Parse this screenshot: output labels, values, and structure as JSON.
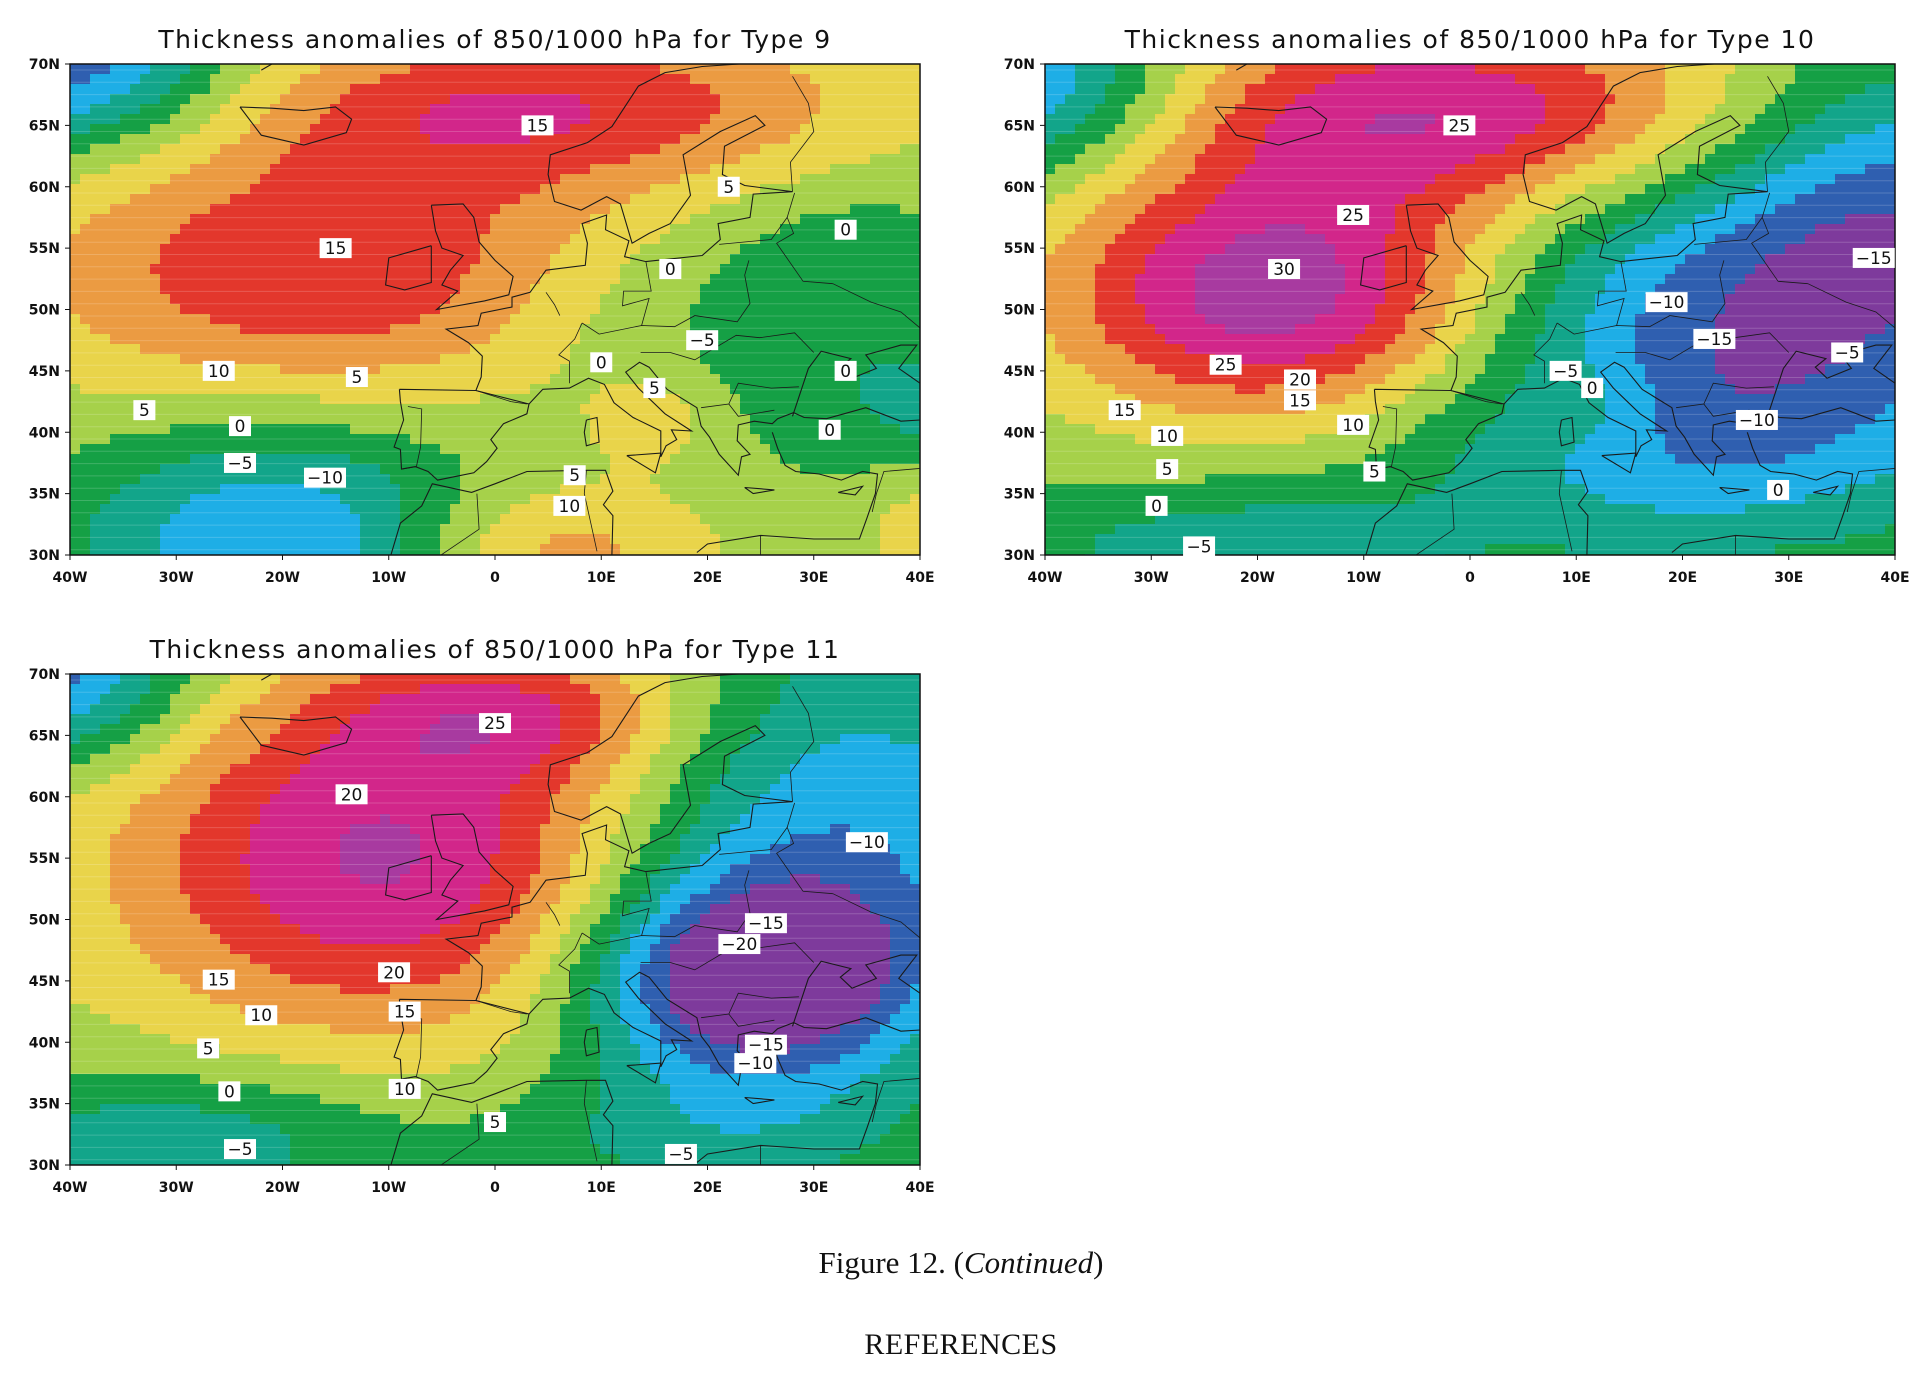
{
  "figure": {
    "caption_label": "Figure 12.",
    "caption_open": "(",
    "caption_italic": "Continued",
    "caption_close": ")",
    "section_heading": "REFERENCES"
  },
  "map_extent": {
    "lon": [
      -40,
      40
    ],
    "lat": [
      30,
      70
    ]
  },
  "axes": {
    "lat_ticks": [
      "70N",
      "65N",
      "60N",
      "55N",
      "50N",
      "45N",
      "40N",
      "35N",
      "30N"
    ],
    "lon_ticks": [
      "40W",
      "30W",
      "20W",
      "10W",
      "0",
      "10E",
      "20E",
      "30E",
      "40E"
    ]
  },
  "palette": {
    "-25": "#7e3a9c",
    "-20": "#2f5fb0",
    "-15": "#1eaee6",
    "-10": "#12a58a",
    "-5": "#15a045",
    "0": "#a6d14a",
    "5": "#e9d44a",
    "10": "#eb9b42",
    "15": "#e3372c",
    "20": "#d2268a",
    "25": "#a83aa0"
  },
  "panels": [
    {
      "id": "type9",
      "title": "Thickness anomalies of 850/1000 hPa for Type 9",
      "contour_labels": [
        {
          "text": "15",
          "lon": 4,
          "lat": 65
        },
        {
          "text": "15",
          "lon": -15,
          "lat": 55
        },
        {
          "text": "10",
          "lon": -26,
          "lat": 45
        },
        {
          "text": "5",
          "lon": -13,
          "lat": 44.5
        },
        {
          "text": "5",
          "lon": -33,
          "lat": 41.8
        },
        {
          "text": "0",
          "lon": -24,
          "lat": 40.5
        },
        {
          "text": "−5",
          "lon": -24,
          "lat": 37.5
        },
        {
          "text": "−10",
          "lon": -16,
          "lat": 36.3
        },
        {
          "text": "5",
          "lon": 22,
          "lat": 60
        },
        {
          "text": "0",
          "lon": 33,
          "lat": 56.5
        },
        {
          "text": "0",
          "lon": 16.5,
          "lat": 53.3
        },
        {
          "text": "−5",
          "lon": 19.5,
          "lat": 47.5
        },
        {
          "text": "0",
          "lon": 10,
          "lat": 45.7
        },
        {
          "text": "5",
          "lon": 15,
          "lat": 43.6
        },
        {
          "text": "0",
          "lon": 33,
          "lat": 45
        },
        {
          "text": "0",
          "lon": 31.5,
          "lat": 40.2
        },
        {
          "text": "5",
          "lon": 7.5,
          "lat": 36.5
        },
        {
          "text": "10",
          "lon": 7,
          "lat": 34
        }
      ]
    },
    {
      "id": "type10",
      "title": "Thickness anomalies of 850/1000 hPa for Type 10",
      "contour_labels": [
        {
          "text": "25",
          "lon": -1,
          "lat": 65
        },
        {
          "text": "25",
          "lon": -11,
          "lat": 57.7
        },
        {
          "text": "30",
          "lon": -17.5,
          "lat": 53.3
        },
        {
          "text": "25",
          "lon": -23,
          "lat": 45.5
        },
        {
          "text": "20",
          "lon": -16,
          "lat": 44.3
        },
        {
          "text": "15",
          "lon": -16,
          "lat": 42.6
        },
        {
          "text": "15",
          "lon": -32.5,
          "lat": 41.8
        },
        {
          "text": "10",
          "lon": -11,
          "lat": 40.6
        },
        {
          "text": "10",
          "lon": -28.5,
          "lat": 39.7
        },
        {
          "text": "5",
          "lon": -28.5,
          "lat": 37
        },
        {
          "text": "5",
          "lon": -9,
          "lat": 36.8
        },
        {
          "text": "0",
          "lon": -29.5,
          "lat": 34
        },
        {
          "text": "−5",
          "lon": -25.5,
          "lat": 30.7
        },
        {
          "text": "−15",
          "lon": 38,
          "lat": 54.2
        },
        {
          "text": "−10",
          "lon": 18.5,
          "lat": 50.6
        },
        {
          "text": "−15",
          "lon": 23,
          "lat": 47.6
        },
        {
          "text": "−5",
          "lon": 35.5,
          "lat": 46.5
        },
        {
          "text": "−5",
          "lon": 9,
          "lat": 45
        },
        {
          "text": "0",
          "lon": 11.5,
          "lat": 43.6
        },
        {
          "text": "−10",
          "lon": 27,
          "lat": 41
        },
        {
          "text": "0",
          "lon": 29,
          "lat": 35.3
        }
      ]
    },
    {
      "id": "type11",
      "title": "Thickness anomalies of 850/1000 hPa for Type 11",
      "contour_labels": [
        {
          "text": "25",
          "lon": 0,
          "lat": 66
        },
        {
          "text": "20",
          "lon": -13.5,
          "lat": 60.2
        },
        {
          "text": "−10",
          "lon": 35,
          "lat": 56.3
        },
        {
          "text": "−15",
          "lon": 25.5,
          "lat": 49.7
        },
        {
          "text": "−20",
          "lon": 23,
          "lat": 48
        },
        {
          "text": "20",
          "lon": -9.5,
          "lat": 45.7
        },
        {
          "text": "15",
          "lon": -26,
          "lat": 45.1
        },
        {
          "text": "15",
          "lon": -8.5,
          "lat": 42.5
        },
        {
          "text": "10",
          "lon": -22,
          "lat": 42.2
        },
        {
          "text": "5",
          "lon": -27,
          "lat": 39.5
        },
        {
          "text": "−15",
          "lon": 25.5,
          "lat": 39.8
        },
        {
          "text": "−10",
          "lon": 24.5,
          "lat": 38.3
        },
        {
          "text": "0",
          "lon": -25,
          "lat": 36
        },
        {
          "text": "10",
          "lon": -8.5,
          "lat": 36.2
        },
        {
          "text": "5",
          "lon": 0,
          "lat": 33.5
        },
        {
          "text": "−5",
          "lon": -24,
          "lat": 31.3
        },
        {
          "text": "−5",
          "lon": 17.5,
          "lat": 30.9
        }
      ]
    }
  ]
}
